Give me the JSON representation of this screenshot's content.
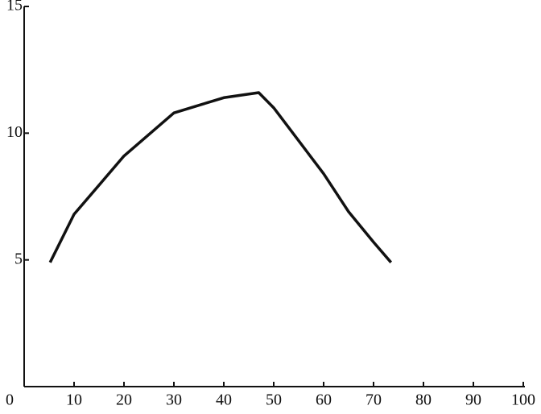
{
  "chart_data": {
    "type": "line",
    "x": [
      5.2,
      10,
      20,
      30,
      40,
      47,
      50,
      60,
      65,
      70,
      73.5
    ],
    "series": [
      {
        "color": "#111111",
        "values": [
          4.9,
          6.8,
          9.1,
          10.8,
          11.4,
          11.6,
          11.0,
          8.4,
          6.9,
          5.7,
          4.9
        ]
      }
    ],
    "xlim": [
      0,
      100
    ],
    "xticks": [
      0,
      10,
      20,
      30,
      40,
      50,
      60,
      70,
      80,
      90,
      100
    ],
    "ylim": [
      0,
      15
    ],
    "yticks": [
      5,
      10,
      15
    ],
    "grid": false
  }
}
